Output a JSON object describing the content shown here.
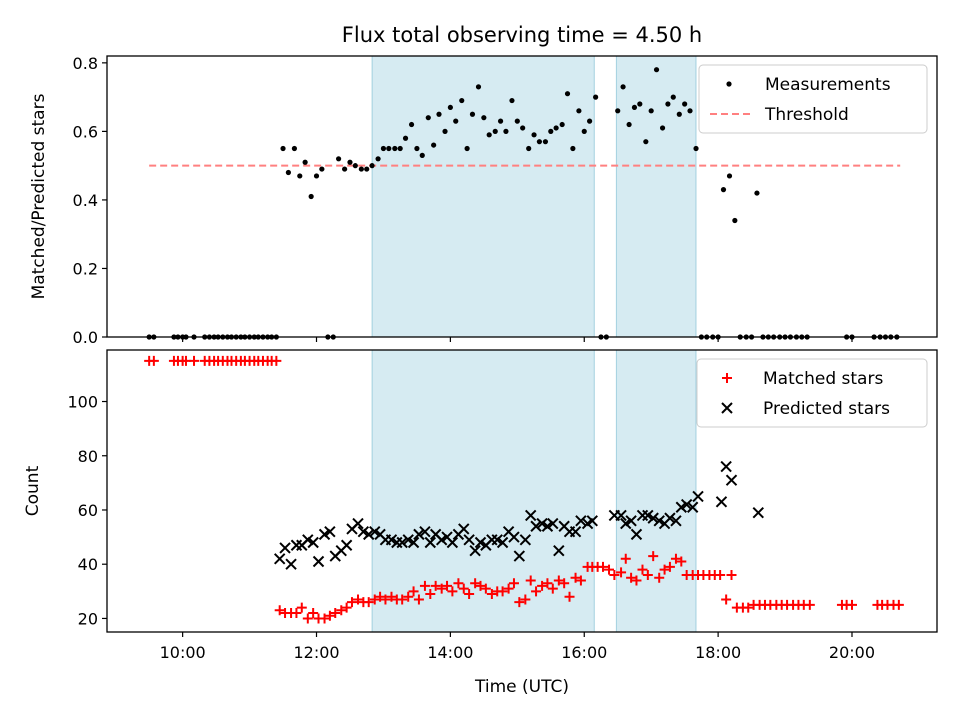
{
  "figure": {
    "title": "Flux total observing time = 4.50 h",
    "xlabel": "Time (UTC)"
  },
  "colors": {
    "shade": "#add8e6",
    "measurement": "#000000",
    "threshold": "#ff8080",
    "matched": "#ff0000",
    "predicted": "#000000"
  },
  "chart_data": [
    {
      "type": "scatter",
      "name": "top-panel",
      "title": "Flux total observing time = 4.50 h",
      "xlabel": "",
      "ylabel": "Matched/Predicted stars",
      "x_unit": "hours UTC",
      "xlim": [
        8.87,
        21.27
      ],
      "ylim": [
        0,
        0.82
      ],
      "yticks": [
        0.0,
        0.2,
        0.4,
        0.6,
        0.8
      ],
      "ytick_labels": [
        "0.0",
        "0.2",
        "0.4",
        "0.6",
        "0.8"
      ],
      "xticks": [
        10,
        12,
        14,
        16,
        18,
        20
      ],
      "grid": false,
      "legend_position": "upper right",
      "shaded_intervals": [
        [
          12.83,
          16.15
        ],
        [
          16.48,
          17.67
        ]
      ],
      "threshold": {
        "name": "Threshold",
        "y": 0.5,
        "x_range": [
          9.5,
          20.72
        ],
        "style": "dashed"
      },
      "series": [
        {
          "name": "Measurements",
          "marker": "dot",
          "x": [
            9.5,
            9.57,
            9.87,
            9.93,
            10.0,
            10.05,
            10.17,
            10.33,
            10.4,
            10.47,
            10.53,
            10.6,
            10.67,
            10.73,
            10.8,
            10.87,
            10.93,
            11.0,
            11.07,
            11.13,
            11.2,
            11.27,
            11.33,
            11.4,
            11.5,
            11.58,
            11.67,
            11.75,
            11.83,
            11.92,
            12.0,
            12.08,
            12.17,
            12.25,
            12.33,
            12.42,
            12.5,
            12.58,
            12.67,
            12.75,
            12.83,
            12.92,
            13.0,
            13.08,
            13.17,
            13.25,
            13.33,
            13.42,
            13.5,
            13.58,
            13.67,
            13.75,
            13.83,
            13.92,
            14.0,
            14.08,
            14.17,
            14.25,
            14.33,
            14.42,
            14.5,
            14.58,
            14.67,
            14.75,
            14.83,
            14.92,
            15.0,
            15.08,
            15.17,
            15.25,
            15.33,
            15.42,
            15.5,
            15.58,
            15.67,
            15.75,
            15.83,
            15.92,
            16.0,
            16.08,
            16.17,
            16.25,
            16.33,
            16.5,
            16.58,
            16.67,
            16.75,
            16.83,
            16.92,
            17.0,
            17.08,
            17.17,
            17.25,
            17.33,
            17.42,
            17.5,
            17.58,
            17.67,
            17.75,
            17.83,
            17.92,
            18.0,
            18.08,
            18.17,
            18.25,
            18.33,
            18.42,
            18.5,
            18.58,
            18.67,
            18.75,
            18.83,
            18.92,
            19.0,
            19.08,
            19.17,
            19.25,
            19.33,
            19.92,
            20.0,
            20.33,
            20.42,
            20.5,
            20.58,
            20.67
          ],
          "y": [
            0.0,
            0.0,
            0.0,
            0.0,
            0.0,
            0.0,
            0.0,
            0.0,
            0.0,
            0.0,
            0.0,
            0.0,
            0.0,
            0.0,
            0.0,
            0.0,
            0.0,
            0.0,
            0.0,
            0.0,
            0.0,
            0.0,
            0.0,
            0.0,
            0.55,
            0.48,
            0.55,
            0.47,
            0.51,
            0.41,
            0.47,
            0.49,
            0.0,
            0.0,
            0.52,
            0.49,
            0.51,
            0.5,
            0.49,
            0.49,
            0.5,
            0.52,
            0.55,
            0.55,
            0.55,
            0.55,
            0.58,
            0.62,
            0.55,
            0.53,
            0.64,
            0.56,
            0.65,
            0.6,
            0.67,
            0.63,
            0.69,
            0.55,
            0.65,
            0.73,
            0.64,
            0.59,
            0.6,
            0.63,
            0.6,
            0.69,
            0.63,
            0.61,
            0.55,
            0.59,
            0.57,
            0.57,
            0.6,
            0.61,
            0.62,
            0.71,
            0.55,
            0.66,
            0.6,
            0.63,
            0.7,
            0.0,
            0.0,
            0.66,
            0.73,
            0.62,
            0.67,
            0.68,
            0.57,
            0.66,
            0.78,
            0.61,
            0.68,
            0.7,
            0.65,
            0.68,
            0.66,
            0.55,
            0.0,
            0.0,
            0.0,
            0.0,
            0.43,
            0.47,
            0.34,
            0.0,
            0.0,
            0.0,
            0.42,
            0.0,
            0.0,
            0.0,
            0.0,
            0.0,
            0.0,
            0.0,
            0.0,
            0.0,
            0.0,
            0.0,
            0.0,
            0.0,
            0.0,
            0.0,
            0.0
          ]
        }
      ]
    },
    {
      "type": "scatter",
      "name": "bottom-panel",
      "xlabel": "Time (UTC)",
      "ylabel": "Count",
      "x_unit": "hours UTC",
      "xlim": [
        8.87,
        21.27
      ],
      "ylim": [
        15,
        119
      ],
      "yticks": [
        20,
        40,
        60,
        80,
        100
      ],
      "ytick_labels": [
        "20",
        "40",
        "60",
        "80",
        "100"
      ],
      "xticks": [
        10,
        12,
        14,
        16,
        18,
        20
      ],
      "xtick_labels": [
        "10:00",
        "12:00",
        "14:00",
        "16:00",
        "18:00",
        "20:00"
      ],
      "grid": false,
      "legend_position": "upper right",
      "shaded_intervals": [
        [
          12.83,
          16.15
        ],
        [
          16.48,
          17.67
        ]
      ],
      "series": [
        {
          "name": "Matched stars",
          "marker": "plus",
          "x": [
            9.5,
            9.57,
            9.87,
            9.93,
            10.0,
            10.05,
            10.17,
            10.33,
            10.4,
            10.47,
            10.53,
            10.6,
            10.67,
            10.73,
            10.8,
            10.87,
            10.93,
            11.0,
            11.07,
            11.13,
            11.2,
            11.27,
            11.33,
            11.4,
            11.45,
            11.53,
            11.62,
            11.7,
            11.78,
            11.87,
            11.95,
            12.03,
            12.12,
            12.2,
            12.28,
            12.37,
            12.45,
            12.53,
            12.62,
            12.7,
            12.78,
            12.87,
            12.95,
            13.03,
            13.12,
            13.2,
            13.28,
            13.37,
            13.45,
            13.53,
            13.62,
            13.7,
            13.78,
            13.87,
            13.95,
            14.03,
            14.12,
            14.2,
            14.28,
            14.37,
            14.45,
            14.53,
            14.62,
            14.7,
            14.78,
            14.87,
            14.95,
            15.03,
            15.12,
            15.2,
            15.28,
            15.37,
            15.45,
            15.53,
            15.62,
            15.7,
            15.78,
            15.87,
            15.95,
            16.05,
            16.12,
            16.2,
            16.28,
            16.37,
            16.45,
            16.55,
            16.62,
            16.7,
            16.78,
            16.87,
            16.95,
            17.03,
            17.12,
            17.2,
            17.28,
            17.37,
            17.45,
            17.53,
            17.62,
            17.7,
            17.78,
            17.87,
            17.95,
            18.03,
            18.12,
            18.2,
            18.28,
            18.37,
            18.45,
            18.53,
            18.62,
            18.7,
            18.78,
            18.87,
            18.95,
            19.03,
            19.12,
            19.2,
            19.28,
            19.37,
            19.85,
            19.92,
            20.0,
            20.38,
            20.45,
            20.53,
            20.62,
            20.7
          ],
          "y": [
            115,
            115,
            115,
            115,
            115,
            115,
            115,
            115,
            115,
            115,
            115,
            115,
            115,
            115,
            115,
            115,
            115,
            115,
            115,
            115,
            115,
            115,
            115,
            115,
            23,
            22,
            22,
            22,
            24,
            20,
            22,
            20,
            20,
            21,
            22,
            23,
            24,
            26,
            27,
            26,
            26,
            27,
            28,
            27,
            28,
            27,
            27,
            28,
            30,
            27,
            32,
            29,
            32,
            31,
            32,
            30,
            33,
            31,
            29,
            33,
            32,
            31,
            29,
            30,
            30,
            31,
            33,
            26,
            27,
            34,
            30,
            32,
            33,
            31,
            34,
            33,
            28,
            35,
            34,
            39,
            39,
            39,
            39,
            38,
            36,
            37,
            42,
            35,
            34,
            38,
            36,
            43,
            35,
            38,
            39,
            42,
            41,
            36,
            36,
            36,
            36,
            36,
            36,
            36,
            27,
            36,
            24,
            24,
            24,
            25,
            25,
            25,
            25,
            25,
            25,
            25,
            25,
            25,
            25,
            25,
            25,
            25,
            25,
            25,
            25,
            25,
            25,
            25
          ]
        },
        {
          "name": "Predicted stars",
          "marker": "x",
          "x": [
            11.45,
            11.53,
            11.62,
            11.7,
            11.78,
            11.87,
            11.95,
            12.03,
            12.12,
            12.2,
            12.28,
            12.37,
            12.45,
            12.53,
            12.62,
            12.7,
            12.78,
            12.87,
            12.95,
            13.03,
            13.12,
            13.2,
            13.28,
            13.37,
            13.45,
            13.53,
            13.62,
            13.7,
            13.78,
            13.87,
            13.95,
            14.03,
            14.12,
            14.2,
            14.28,
            14.37,
            14.45,
            14.53,
            14.62,
            14.7,
            14.78,
            14.87,
            14.95,
            15.03,
            15.12,
            15.2,
            15.28,
            15.37,
            15.45,
            15.53,
            15.62,
            15.7,
            15.78,
            15.87,
            15.95,
            16.05,
            16.12,
            16.45,
            16.55,
            16.62,
            16.7,
            16.78,
            16.87,
            16.95,
            17.03,
            17.12,
            17.2,
            17.28,
            17.37,
            17.45,
            17.53,
            17.62,
            17.7,
            18.05,
            18.12,
            18.2,
            18.6
          ],
          "y": [
            42,
            46,
            40,
            47,
            47,
            49,
            48,
            41,
            51,
            52,
            43,
            45,
            47,
            53,
            55,
            52,
            51,
            52,
            51,
            49,
            49,
            48,
            48,
            49,
            48,
            51,
            52,
            48,
            51,
            49,
            50,
            48,
            51,
            53,
            49,
            45,
            48,
            47,
            49,
            49,
            48,
            52,
            50,
            43,
            49,
            58,
            54,
            55,
            54,
            55,
            45,
            54,
            52,
            52,
            56,
            55,
            56,
            58,
            58,
            55,
            56,
            51,
            58,
            58,
            57,
            56,
            55,
            57,
            56,
            61,
            62,
            61,
            65,
            63,
            76,
            71,
            59
          ]
        }
      ]
    }
  ]
}
